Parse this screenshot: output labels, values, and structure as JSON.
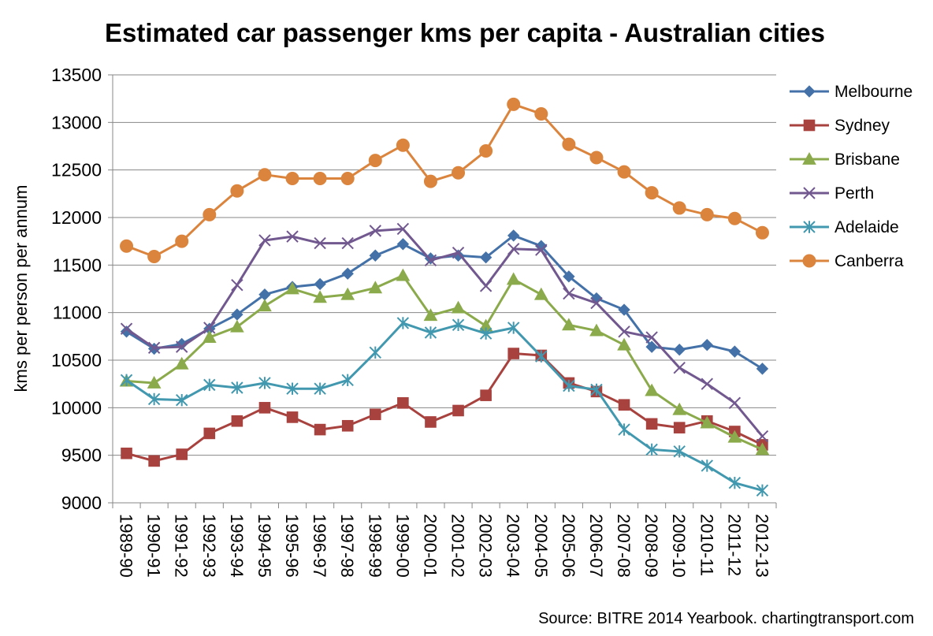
{
  "chart_data": {
    "type": "line",
    "title": "Estimated car passenger kms per capita - Australian cities",
    "ylabel": "kms per person per annum",
    "xlabel": "",
    "ylim": [
      9000,
      13500
    ],
    "yticks": [
      9000,
      9500,
      10000,
      10500,
      11000,
      11500,
      12000,
      12500,
      13000,
      13500
    ],
    "grid": "horizontal",
    "legend_position": "right",
    "source": "Source: BITRE 2014 Yearbook.  chartingtransport.com",
    "categories": [
      "1989-90",
      "1990-91",
      "1991-92",
      "1992-93",
      "1993-94",
      "1994-95",
      "1995-96",
      "1996-97",
      "1997-98",
      "1998-99",
      "1999-00",
      "2000-01",
      "2001-02",
      "2002-03",
      "2003-04",
      "2004-05",
      "2005-06",
      "2006-07",
      "2007-08",
      "2008-09",
      "2009-10",
      "2010-11",
      "2011-12",
      "2012-13"
    ],
    "series": [
      {
        "name": "Melbourne",
        "color": "#4472A8",
        "marker": "diamond",
        "values": [
          10800,
          10620,
          10670,
          10830,
          10980,
          11190,
          11270,
          11300,
          11410,
          11600,
          11720,
          11570,
          11600,
          11580,
          11810,
          11700,
          11380,
          11150,
          11030,
          10640,
          10610,
          10660,
          10590,
          10410
        ]
      },
      {
        "name": "Sydney",
        "color": "#A8423F",
        "marker": "square",
        "values": [
          9520,
          9440,
          9510,
          9730,
          9860,
          10000,
          9900,
          9770,
          9810,
          9930,
          10050,
          9850,
          9970,
          10130,
          10570,
          10550,
          10260,
          10170,
          10030,
          9830,
          9790,
          9860,
          9750,
          9610
        ]
      },
      {
        "name": "Brisbane",
        "color": "#8BAA4B",
        "marker": "triangle",
        "values": [
          10280,
          10260,
          10460,
          10740,
          10850,
          11070,
          11250,
          11160,
          11190,
          11260,
          11390,
          10970,
          11050,
          10860,
          11350,
          11190,
          10870,
          10810,
          10660,
          10180,
          9980,
          9840,
          9690,
          9560
        ]
      },
      {
        "name": "Perth",
        "color": "#71588F",
        "marker": "x",
        "values": [
          10830,
          10630,
          10640,
          10840,
          11290,
          11760,
          11800,
          11730,
          11730,
          11860,
          11880,
          11550,
          11630,
          11280,
          11670,
          11660,
          11200,
          11100,
          10800,
          10740,
          10420,
          10250,
          10050,
          9700
        ]
      },
      {
        "name": "Adelaide",
        "color": "#4198AF",
        "marker": "star",
        "values": [
          10290,
          10090,
          10080,
          10240,
          10210,
          10260,
          10200,
          10200,
          10290,
          10580,
          10890,
          10790,
          10870,
          10780,
          10840,
          10540,
          10230,
          10190,
          9770,
          9560,
          9540,
          9390,
          9210,
          9130
        ]
      },
      {
        "name": "Canberra",
        "color": "#DB843D",
        "marker": "circle",
        "values": [
          11700,
          11590,
          11750,
          12030,
          12280,
          12450,
          12410,
          12410,
          12410,
          12600,
          12760,
          12380,
          12470,
          12700,
          13190,
          13090,
          12770,
          12630,
          12480,
          12260,
          12100,
          12030,
          11990,
          11840
        ]
      }
    ]
  }
}
